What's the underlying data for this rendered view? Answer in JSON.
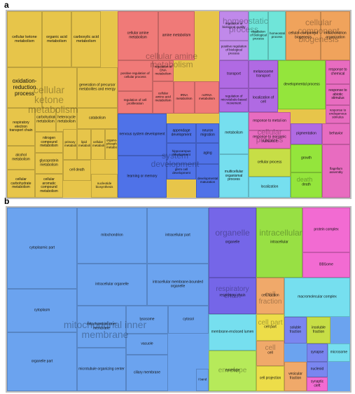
{
  "figure": {
    "panel_a_letter": "a",
    "panel_b_letter": "b"
  },
  "colors": {
    "metabolic": "#e7c54a",
    "amine": "#f07a78",
    "regulation_bio": "#c089ea",
    "homeostatic": "#6fe5d9",
    "biogenesis": "#f0a35c",
    "developmental": "#94e53c",
    "system_dev": "#4f72e8",
    "transport": "#b06ae3",
    "chemical": "#e86cc0",
    "cellular_process": "#c7de46",
    "cellular_component": "#6ba3ef",
    "organelle": "#7566e8",
    "intracellular": "#98e044",
    "protein_complex": "#f26bd2",
    "cell_fraction": "#f0a96a",
    "cell_part": "#eddd49",
    "synapse": "#7a86f0",
    "envelope": "#b6ea5a",
    "membrane_lumen": "#76dfef"
  },
  "chart_data": [
    {
      "type": "treemap",
      "panel": "a",
      "group_labels": [
        "cellular ketone metabolism",
        "cellular amine metabolism",
        "homeostatic process",
        "cellular component biogenesis",
        "system development",
        "cellular process",
        "death"
      ],
      "cells": [
        "cellular ketone metabolism",
        "organic acid metabolism",
        "carboxylic acid metabolism",
        "oxidation-reduction process",
        "cellular metabolism",
        "cellular nitrogen compound biosynthesis",
        "generation of precursor metabolites and energy",
        "respiratory electron transport chain",
        "carbohydrate metabolism",
        "heterocycle metabolism",
        "catabolism",
        "nitrogen compound metabolism",
        "primary metabolism",
        "lipid metabolism",
        "cellular metabolism",
        "alcohol metabolism",
        "glycoprotein metabolism",
        "cell death",
        "organo-phosphate metabolism",
        "cellular carbohydrate metabolism",
        "cellular aromatic compound metabolism",
        "nucleotide biosynthesis",
        "cellular amine metabolism",
        "amine metabolism",
        "positive regulation of cellular process",
        "regulation of DNA metabolism",
        "regulation of cell proliferation",
        "cellular amino acid metabolism",
        "tRNA metabolism",
        "ncRNA metabolism",
        "regulation of biological quality",
        "positive regulation of biological process",
        "homeostatic process",
        "regulation of biological process",
        "cellular component biogenesis",
        "mitochondrion organization",
        "transport",
        "melanosome transport",
        "regulation of microtubule-based movement",
        "localization of cell",
        "developmental process",
        "response to chemical",
        "response to abiotic stimulus",
        "response to endogenous stimulus",
        "appendage development",
        "neuron migration",
        "nervous system development",
        "hippocampus development",
        "learning or memory",
        "germ cell development",
        "developmental maturation",
        "aging",
        "metabolism",
        "multicellular organismal process",
        "response to metal ion",
        "response to inorganic substance",
        "pigmentation",
        "behavior",
        "localization",
        "cellular process",
        "growth",
        "response to radiation",
        "flagellum assembly",
        "death"
      ]
    },
    {
      "type": "treemap",
      "panel": "b",
      "group_labels": [
        "mitochondrial inner membrane",
        "organelle",
        "intracellular",
        "respiratory chain",
        "cell fraction",
        "cell part",
        "cell",
        "envelope"
      ],
      "cells": [
        "cytoplasmic part",
        "mitochondrion",
        "intracellular part",
        "cytoplasm",
        "intracellular organelle",
        "intracellular membrane-bounded organelle",
        "mitochondrial inner membrane",
        "lysosome",
        "cytosol",
        "organelle part",
        "vacuole",
        "microtubule organizing center",
        "ciliary membrane",
        "I band",
        "organelle",
        "intracellular",
        "respiratory chain",
        "cell fraction",
        "macromolecular complex",
        "membrane-enclosed lumen",
        "cell part",
        "soluble fraction",
        "insoluble fraction",
        "cell",
        "synapse",
        "microsome",
        "envelope",
        "cell projection",
        "vesicular fraction",
        "nucleoid",
        "synaptic cleft",
        "protein complex",
        "BBSome"
      ]
    }
  ]
}
